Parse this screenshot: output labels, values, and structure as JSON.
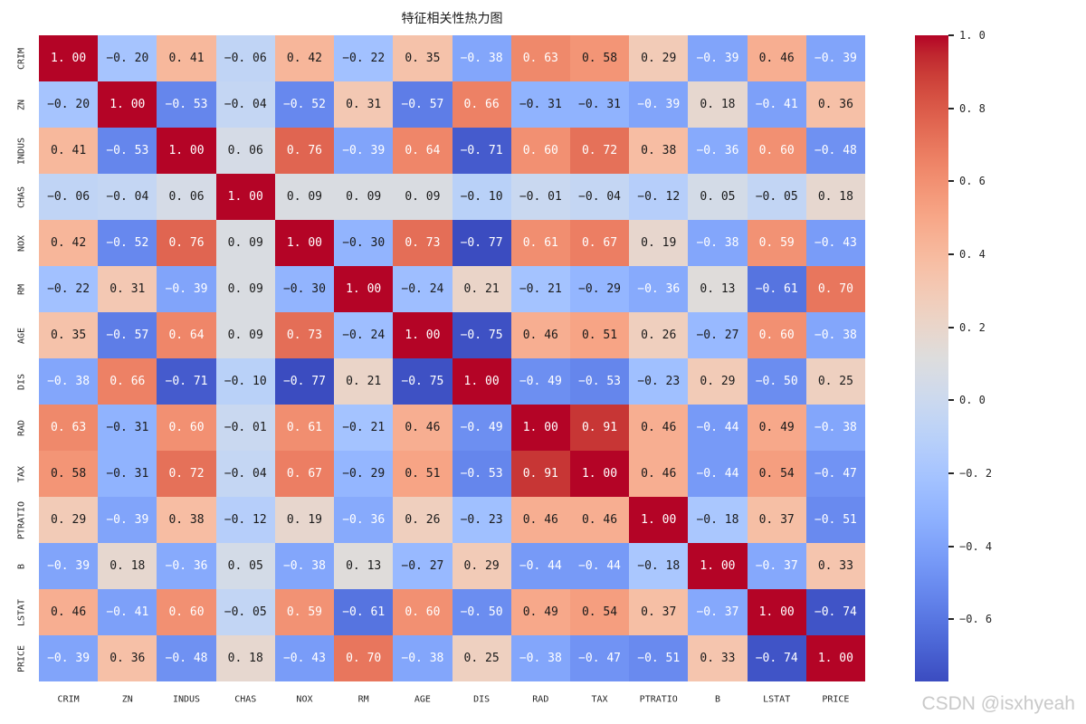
{
  "title": "特征相关性热力图",
  "watermark": "CSDN @isxhyeah",
  "chart_data": {
    "type": "heatmap",
    "title": "特征相关性热力图",
    "xlabel": "",
    "ylabel": "",
    "categories": [
      "CRIM",
      "ZN",
      "INDUS",
      "CHAS",
      "NOX",
      "RM",
      "AGE",
      "DIS",
      "RAD",
      "TAX",
      "PTRATIO",
      "B",
      "LSTAT",
      "PRICE"
    ],
    "matrix": [
      [
        1.0,
        -0.2,
        0.41,
        -0.06,
        0.42,
        -0.22,
        0.35,
        -0.38,
        0.63,
        0.58,
        0.29,
        -0.39,
        0.46,
        -0.39
      ],
      [
        -0.2,
        1.0,
        -0.53,
        -0.04,
        -0.52,
        0.31,
        -0.57,
        0.66,
        -0.31,
        -0.31,
        -0.39,
        0.18,
        -0.41,
        0.36
      ],
      [
        0.41,
        -0.53,
        1.0,
        0.06,
        0.76,
        -0.39,
        0.64,
        -0.71,
        0.6,
        0.72,
        0.38,
        -0.36,
        0.6,
        -0.48
      ],
      [
        -0.06,
        -0.04,
        0.06,
        1.0,
        0.09,
        0.09,
        0.09,
        -0.1,
        -0.01,
        -0.04,
        -0.12,
        0.05,
        -0.05,
        0.18
      ],
      [
        0.42,
        -0.52,
        0.76,
        0.09,
        1.0,
        -0.3,
        0.73,
        -0.77,
        0.61,
        0.67,
        0.19,
        -0.38,
        0.59,
        -0.43
      ],
      [
        -0.22,
        0.31,
        -0.39,
        0.09,
        -0.3,
        1.0,
        -0.24,
        0.21,
        -0.21,
        -0.29,
        -0.36,
        0.13,
        -0.61,
        0.7
      ],
      [
        0.35,
        -0.57,
        0.64,
        0.09,
        0.73,
        -0.24,
        1.0,
        -0.75,
        0.46,
        0.51,
        0.26,
        -0.27,
        0.6,
        -0.38
      ],
      [
        -0.38,
        0.66,
        -0.71,
        -0.1,
        -0.77,
        0.21,
        -0.75,
        1.0,
        -0.49,
        -0.53,
        -0.23,
        0.29,
        -0.5,
        0.25
      ],
      [
        0.63,
        -0.31,
        0.6,
        -0.01,
        0.61,
        -0.21,
        0.46,
        -0.49,
        1.0,
        0.91,
        0.46,
        -0.44,
        0.49,
        -0.38
      ],
      [
        0.58,
        -0.31,
        0.72,
        -0.04,
        0.67,
        -0.29,
        0.51,
        -0.53,
        0.91,
        1.0,
        0.46,
        -0.44,
        0.54,
        -0.47
      ],
      [
        0.29,
        -0.39,
        0.38,
        -0.12,
        0.19,
        -0.36,
        0.26,
        -0.23,
        0.46,
        0.46,
        1.0,
        -0.18,
        0.37,
        -0.51
      ],
      [
        -0.39,
        0.18,
        -0.36,
        0.05,
        -0.38,
        0.13,
        -0.27,
        0.29,
        -0.44,
        -0.44,
        -0.18,
        1.0,
        -0.37,
        0.33
      ],
      [
        0.46,
        -0.41,
        0.6,
        -0.05,
        0.59,
        -0.61,
        0.6,
        -0.5,
        0.49,
        0.54,
        0.37,
        -0.37,
        1.0,
        -0.74
      ],
      [
        -0.39,
        0.36,
        -0.48,
        0.18,
        -0.43,
        0.7,
        -0.38,
        0.25,
        -0.38,
        -0.47,
        -0.51,
        0.33,
        -0.74,
        1.0
      ]
    ],
    "annotation_format": ".2f",
    "colormap": "coolwarm",
    "vmin": -0.77,
    "vmax": 1.0,
    "colorbar_ticks": [
      1.0,
      0.8,
      0.6,
      0.4,
      0.2,
      0.0,
      -0.2,
      -0.4,
      -0.6
    ],
    "colors": {
      "negative_end": "#3b4cc0",
      "midpoint": "#dddddd",
      "positive_end": "#b40426",
      "annotation_dark": "#1a1a1a",
      "annotation_light": "#ffffff",
      "tick_label": "#262626",
      "watermark": "#c9c9c9"
    },
    "legend_position": "right-colorbar",
    "grid": false
  }
}
